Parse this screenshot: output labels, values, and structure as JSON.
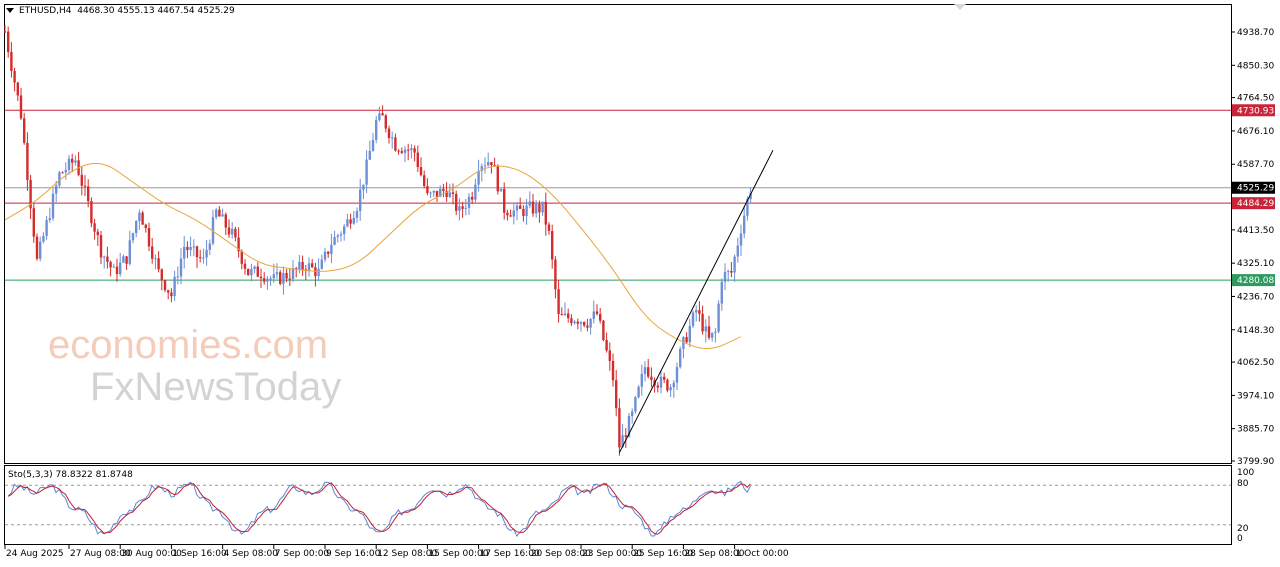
{
  "header": {
    "symbol": "ETHUSD,H4",
    "ohlc": "4468.30 4555.13 4467.54 4525.29"
  },
  "oscillator_header": "Sto(5,3,3) 78.8322 81.8748",
  "watermark": {
    "line1": "economies.com",
    "line2": "FxNewsToday"
  },
  "colors": {
    "bull": "#6d8fd6",
    "bear": "#d42b2b",
    "ma": "#e8a53a",
    "resistance": "#c8243a",
    "support": "#2e9a5f",
    "current": "#999999",
    "trend": "#000000",
    "sto_main": "#5b86d6",
    "sto_signal": "#c0222f"
  },
  "price_ticks": [
    "4938.70",
    "4850.30",
    "4764.50",
    "4676.10",
    "4587.70",
    "4413.50",
    "4325.10",
    "4236.70",
    "4148.30",
    "4062.50",
    "3974.10",
    "3885.70",
    "3799.90"
  ],
  "price_labels": {
    "resistance": "4730.93",
    "current": "4525.29",
    "mid": "4484.29",
    "support": "4280.08"
  },
  "sto_ticks": [
    "100",
    "80",
    "20",
    "0"
  ],
  "time_ticks": [
    "24 Aug 2025",
    "27 Aug 08:00",
    "30 Aug 00:00",
    "1 Sep 16:00",
    "4 Sep 08:00",
    "7 Sep 00:00",
    "9 Sep 16:00",
    "12 Sep 08:00",
    "15 Sep 00:00",
    "17 Sep 16:00",
    "20 Sep 08:00",
    "23 Sep 00:00",
    "25 Sep 16:00",
    "28 Sep 08:00",
    "1 Oct 00:00"
  ],
  "chart_data": {
    "type": "candlestick",
    "symbol": "ETHUSD",
    "timeframe": "H4",
    "ylim": [
      3799.9,
      4960
    ],
    "horizontal_levels": [
      {
        "price": 4730.93,
        "color": "resistance"
      },
      {
        "price": 4484.29,
        "color": "resistance"
      },
      {
        "price": 4280.08,
        "color": "support"
      },
      {
        "price": 4525.29,
        "color": "current"
      }
    ],
    "trendline": {
      "from": [
        "25 Sep 00:00",
        3822
      ],
      "to": [
        "3 Oct 00:00",
        4625
      ]
    },
    "anchors": [
      [
        "24 Aug 00:00",
        4940
      ],
      [
        "24 Aug 20:00",
        4720
      ],
      [
        "25 Aug 16:00",
        4330
      ],
      [
        "26 Aug 20:00",
        4560
      ],
      [
        "27 Aug 16:00",
        4600
      ],
      [
        "29 Aug 00:00",
        4360
      ],
      [
        "29 Aug 16:00",
        4300
      ],
      [
        "30 Aug 08:00",
        4340
      ],
      [
        "31 Aug 00:00",
        4470
      ],
      [
        "1 Sep 00:00",
        4300
      ],
      [
        "1 Sep 16:00",
        4240
      ],
      [
        "2 Sep 08:00",
        4370
      ],
      [
        "3 Sep 08:00",
        4330
      ],
      [
        "4 Sep 00:00",
        4460
      ],
      [
        "4 Sep 20:00",
        4400
      ],
      [
        "5 Sep 16:00",
        4300
      ],
      [
        "6 Sep 08:00",
        4300
      ],
      [
        "7 Sep 00:00",
        4280
      ],
      [
        "8 Sep 00:00",
        4300
      ],
      [
        "8 Sep 16:00",
        4320
      ],
      [
        "9 Sep 08:00",
        4300
      ],
      [
        "10 Sep 00:00",
        4380
      ],
      [
        "10 Sep 16:00",
        4420
      ],
      [
        "11 Sep 08:00",
        4480
      ],
      [
        "11 Sep 20:00",
        4580
      ],
      [
        "12 Sep 08:00",
        4700
      ],
      [
        "12 Sep 16:00",
        4710
      ],
      [
        "13 Sep 08:00",
        4640
      ],
      [
        "14 Sep 08:00",
        4620
      ],
      [
        "15 Sep 00:00",
        4500
      ],
      [
        "16 Sep 00:00",
        4520
      ],
      [
        "16 Sep 16:00",
        4460
      ],
      [
        "17 Sep 08:00",
        4510
      ],
      [
        "17 Sep 16:00",
        4590
      ],
      [
        "18 Sep 08:00",
        4600
      ],
      [
        "19 Sep 00:00",
        4470
      ],
      [
        "19 Sep 16:00",
        4460
      ],
      [
        "20 Sep 08:00",
        4470
      ],
      [
        "21 Sep 00:00",
        4470
      ],
      [
        "21 Sep 08:00",
        4400
      ],
      [
        "21 Sep 20:00",
        4180
      ],
      [
        "22 Sep 16:00",
        4180
      ],
      [
        "23 Sep 08:00",
        4170
      ],
      [
        "23 Sep 20:00",
        4190
      ],
      [
        "24 Sep 16:00",
        4020
      ],
      [
        "25 Sep 00:00",
        3840
      ],
      [
        "25 Sep 16:00",
        3920
      ],
      [
        "26 Sep 08:00",
        4050
      ],
      [
        "27 Sep 00:00",
        4010
      ],
      [
        "27 Sep 16:00",
        4000
      ],
      [
        "28 Sep 08:00",
        4110
      ],
      [
        "29 Sep 00:00",
        4200
      ],
      [
        "29 Sep 16:00",
        4120
      ],
      [
        "30 Sep 00:00",
        4140
      ],
      [
        "30 Sep 08:00",
        4290
      ],
      [
        "30 Sep 20:00",
        4300
      ],
      [
        "1 Oct 08:00",
        4420
      ],
      [
        "1 Oct 20:00",
        4525
      ]
    ],
    "moving_average": [
      [
        "24 Aug 00:00",
        4440
      ],
      [
        "25 Aug 16:00",
        4490
      ],
      [
        "27 Aug 08:00",
        4570
      ],
      [
        "29 Aug 00:00",
        4600
      ],
      [
        "30 Aug 16:00",
        4540
      ],
      [
        "1 Sep 08:00",
        4480
      ],
      [
        "3 Sep 00:00",
        4440
      ],
      [
        "4 Sep 16:00",
        4380
      ],
      [
        "6 Sep 08:00",
        4320
      ],
      [
        "8 Sep 00:00",
        4310
      ],
      [
        "9 Sep 16:00",
        4300
      ],
      [
        "11 Sep 08:00",
        4320
      ],
      [
        "13 Sep 00:00",
        4400
      ],
      [
        "14 Sep 16:00",
        4480
      ],
      [
        "16 Sep 08:00",
        4520
      ],
      [
        "18 Sep 00:00",
        4585
      ],
      [
        "19 Sep 16:00",
        4580
      ],
      [
        "21 Sep 08:00",
        4520
      ],
      [
        "23 Sep 00:00",
        4420
      ],
      [
        "24 Sep 16:00",
        4310
      ],
      [
        "26 Sep 08:00",
        4180
      ],
      [
        "28 Sep 00:00",
        4120
      ],
      [
        "29 Sep 16:00",
        4090
      ],
      [
        "1 Oct 08:00",
        4130
      ]
    ],
    "stochastic": {
      "params": "5,3,3",
      "main": 78.8322,
      "signal": 81.8748,
      "levels": [
        80,
        20
      ],
      "ylim": [
        0,
        100
      ]
    }
  }
}
